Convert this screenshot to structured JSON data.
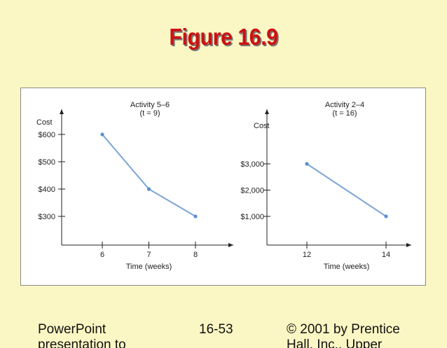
{
  "slide": {
    "title": "Figure 16.9",
    "footer_left": "PowerPoint presentation to",
    "footer_center": "16-53",
    "footer_right": "© 2001 by Prentice Hall, Inc., Upper"
  },
  "chart_data": [
    {
      "type": "line",
      "title": "Activity 5–6",
      "subtitle": "(t = 9)",
      "xlabel": "Time (weeks)",
      "ylabel": "Cost",
      "x": [
        6,
        7,
        8
      ],
      "y": [
        600,
        400,
        300
      ],
      "x_ticks": [
        6,
        7,
        8
      ],
      "y_ticks": [
        300,
        400,
        500,
        600
      ],
      "x_tick_labels": [
        "6",
        "7",
        "8"
      ],
      "y_tick_labels": [
        "$300",
        "$400",
        "$500",
        "$600"
      ],
      "grid": false
    },
    {
      "type": "line",
      "title": "Activity 2–4",
      "subtitle": "(t = 16)",
      "xlabel": "Time (weeks)",
      "ylabel": "Cost",
      "x": [
        12,
        14
      ],
      "y": [
        3000,
        1000
      ],
      "x_ticks": [
        12,
        14
      ],
      "y_ticks": [
        1000,
        2000,
        3000
      ],
      "x_tick_labels": [
        "12",
        "14"
      ],
      "y_tick_labels": [
        "$1,000",
        "$2,000",
        "$3,000"
      ],
      "grid": false
    }
  ],
  "colors": {
    "background": "#fbf7c4",
    "title": "#cc1111",
    "series_line": "#7aa6d6",
    "series_point": "#5a8fd0",
    "axis": "#222222"
  }
}
